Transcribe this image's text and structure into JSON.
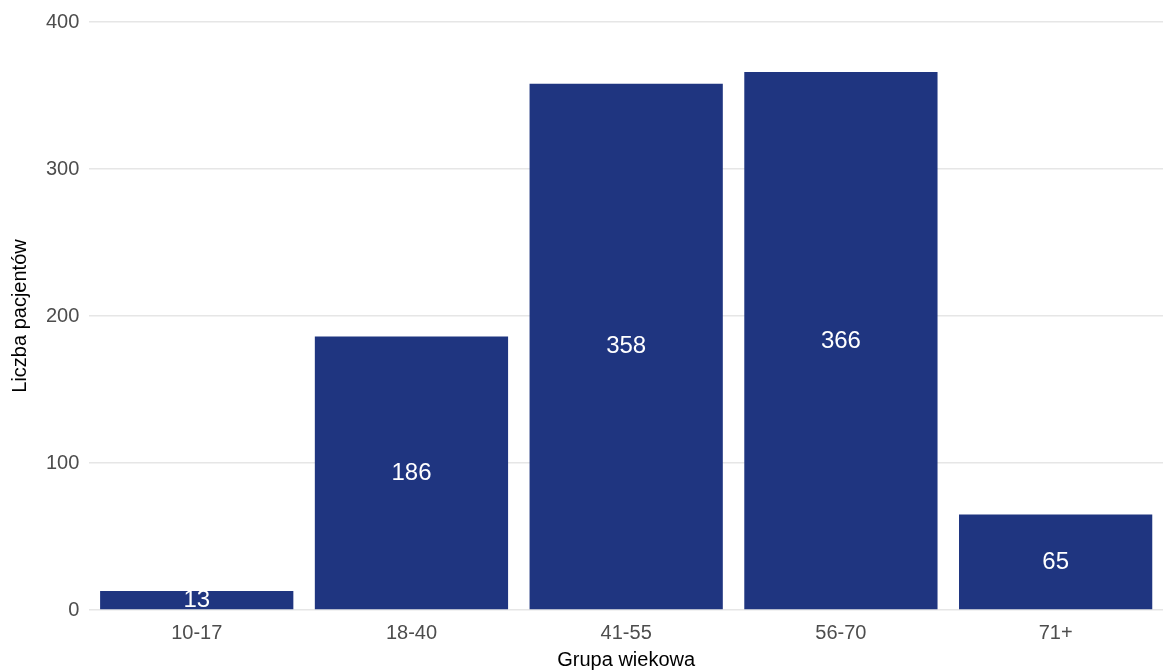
{
  "chart_data": {
    "type": "bar",
    "xlabel": "Grupa wiekowa",
    "ylabel": "Liczba pacjentów",
    "categories": [
      "10-17",
      "18-40",
      "41-55",
      "56-70",
      "71+"
    ],
    "values": [
      13,
      186,
      358,
      366,
      65
    ],
    "color": "#1f3580",
    "ylim": [
      0,
      400
    ],
    "yticks": [
      0,
      100,
      200,
      300,
      400
    ],
    "grid": "y",
    "data_labels": true
  }
}
